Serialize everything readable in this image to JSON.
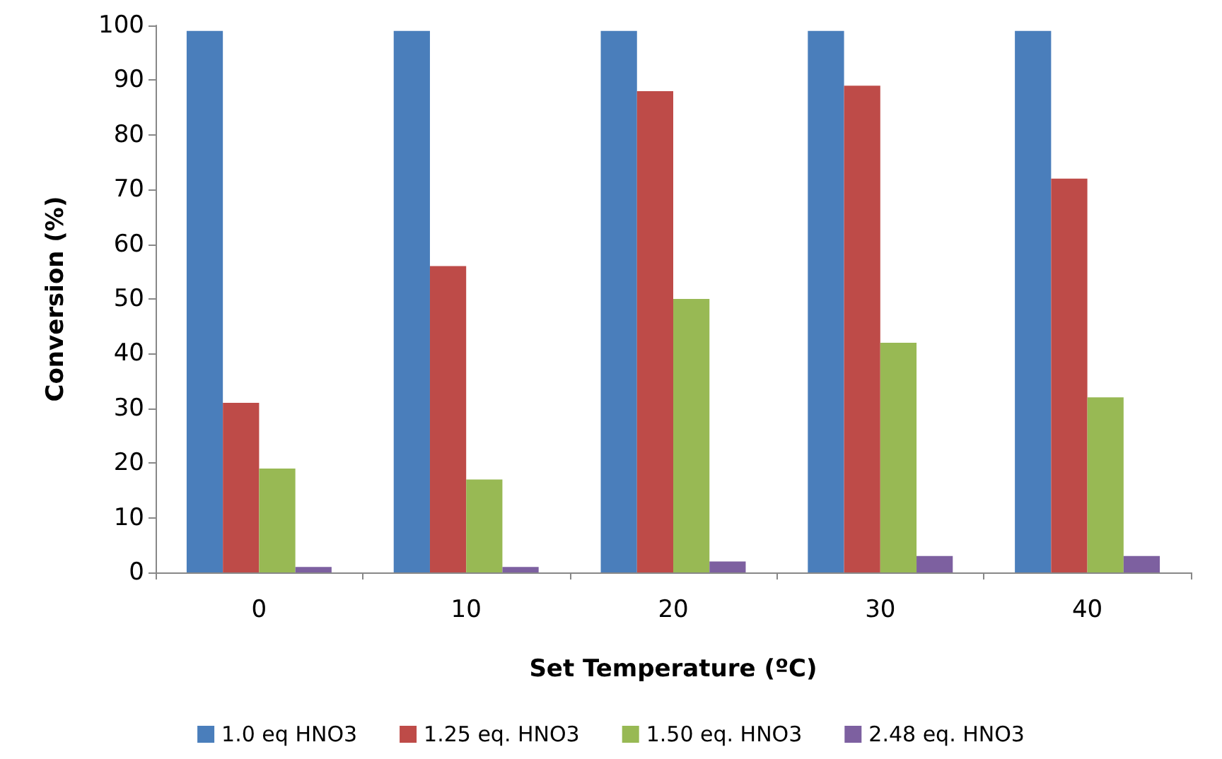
{
  "chart_data": {
    "type": "bar",
    "xlabel": "Set Temperature (ºC)",
    "ylabel": "Conversion (%)",
    "categories": [
      "0",
      "10",
      "20",
      "30",
      "40"
    ],
    "series": [
      {
        "name": "1.0 eq HNO3",
        "color": "#4a7ebb",
        "values": [
          99,
          99,
          99,
          99,
          99
        ]
      },
      {
        "name": "1.25 eq. HNO3",
        "color": "#be4b48",
        "values": [
          31,
          56,
          88,
          89,
          72
        ]
      },
      {
        "name": "1.50 eq. HNO3",
        "color": "#98b954",
        "values": [
          19,
          17,
          50,
          42,
          32
        ]
      },
      {
        "name": "2.48 eq. HNO3",
        "color": "#7d60a0",
        "values": [
          1,
          1,
          2,
          3,
          3
        ]
      }
    ],
    "ylim": [
      0,
      100
    ],
    "yticks": [
      0,
      10,
      20,
      30,
      40,
      50,
      60,
      70,
      80,
      90,
      100
    ],
    "grid": false,
    "legend": "bottom"
  }
}
